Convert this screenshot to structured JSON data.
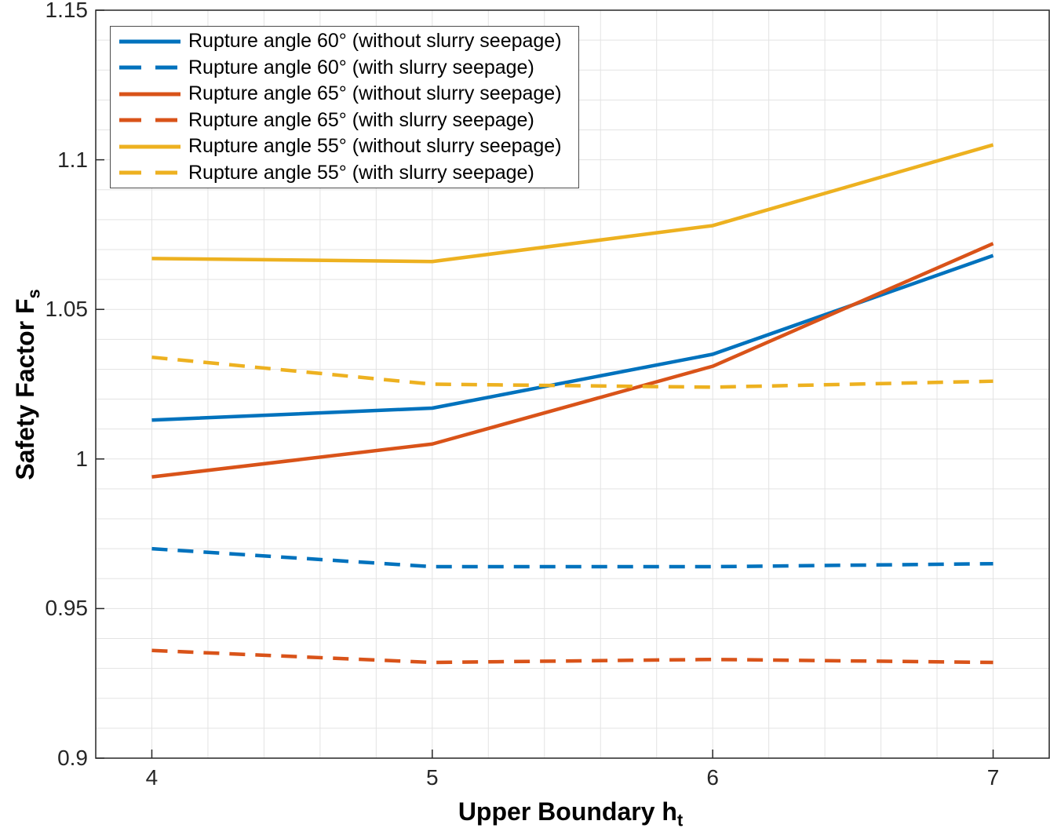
{
  "chart_data": {
    "type": "line",
    "title": "",
    "xlabel": {
      "main": "Upper Boundary h",
      "sub": "t"
    },
    "ylabel": {
      "main": "Safety Factor F",
      "sub": "s"
    },
    "x": [
      4,
      5,
      6,
      7
    ],
    "xlim": [
      3.8,
      7.2
    ],
    "ylim": [
      0.9,
      1.15
    ],
    "x_ticks": [
      {
        "v": 4,
        "label": "4"
      },
      {
        "v": 5,
        "label": "5"
      },
      {
        "v": 6,
        "label": "6"
      },
      {
        "v": 7,
        "label": "7"
      }
    ],
    "y_ticks": [
      {
        "v": 0.9,
        "label": "0.9"
      },
      {
        "v": 0.95,
        "label": "0.95"
      },
      {
        "v": 1,
        "label": "1"
      },
      {
        "v": 1.05,
        "label": "1.05"
      },
      {
        "v": 1.1,
        "label": "1.1"
      },
      {
        "v": 1.15,
        "label": "1.15"
      }
    ],
    "grid": {
      "on": true,
      "x_step": 0.2,
      "y_step": 0.01,
      "color": "#e3e3e3"
    },
    "axis_color": "#262626",
    "legend_position": "top-left",
    "series": [
      {
        "name": "Rupture angle 60° (without slurry seepage)",
        "color": "#0072BD",
        "style": "solid",
        "values": [
          1.013,
          1.017,
          1.035,
          1.068
        ]
      },
      {
        "name": "Rupture angle 60° (with slurry seepage)",
        "color": "#0072BD",
        "style": "dashed",
        "values": [
          0.97,
          0.964,
          0.964,
          0.965
        ]
      },
      {
        "name": "Rupture angle 65° (without slurry seepage)",
        "color": "#D95319",
        "style": "solid",
        "values": [
          0.994,
          1.005,
          1.031,
          1.072
        ]
      },
      {
        "name": "Rupture angle 65° (with slurry seepage)",
        "color": "#D95319",
        "style": "dashed",
        "values": [
          0.936,
          0.932,
          0.933,
          0.932
        ]
      },
      {
        "name": "Rupture angle 55° (without slurry seepage)",
        "color": "#EDB120",
        "style": "solid",
        "values": [
          1.067,
          1.066,
          1.078,
          1.105
        ]
      },
      {
        "name": "Rupture angle 55° (with slurry seepage)",
        "color": "#EDB120",
        "style": "dashed",
        "values": [
          1.034,
          1.025,
          1.024,
          1.026
        ]
      }
    ]
  }
}
